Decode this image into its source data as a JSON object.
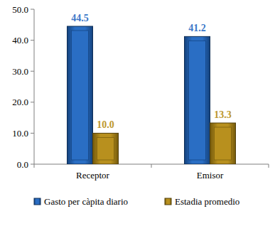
{
  "chart_data": {
    "type": "bar",
    "categories": [
      "Receptor",
      "Emisor"
    ],
    "series": [
      {
        "name": "Gasto per càpita diario",
        "color": "#1f66c1",
        "values": [
          44.5,
          41.2
        ]
      },
      {
        "name": "Estadia promedio",
        "color": "#b48a12",
        "values": [
          10.0,
          13.3
        ],
        "value_labels": [
          "10.0",
          "13.3"
        ]
      }
    ],
    "ylim": [
      0,
      50
    ],
    "yticks": [
      {
        "value": 0,
        "label": "0.0"
      },
      {
        "value": 10,
        "label": "10.0"
      },
      {
        "value": 20,
        "label": "20.0"
      },
      {
        "value": 30,
        "label": "30.0"
      },
      {
        "value": 40,
        "label": "40.0"
      },
      {
        "value": 50,
        "label": "50.0"
      }
    ],
    "grid": false,
    "data_labels": true,
    "legend": "bottom"
  }
}
